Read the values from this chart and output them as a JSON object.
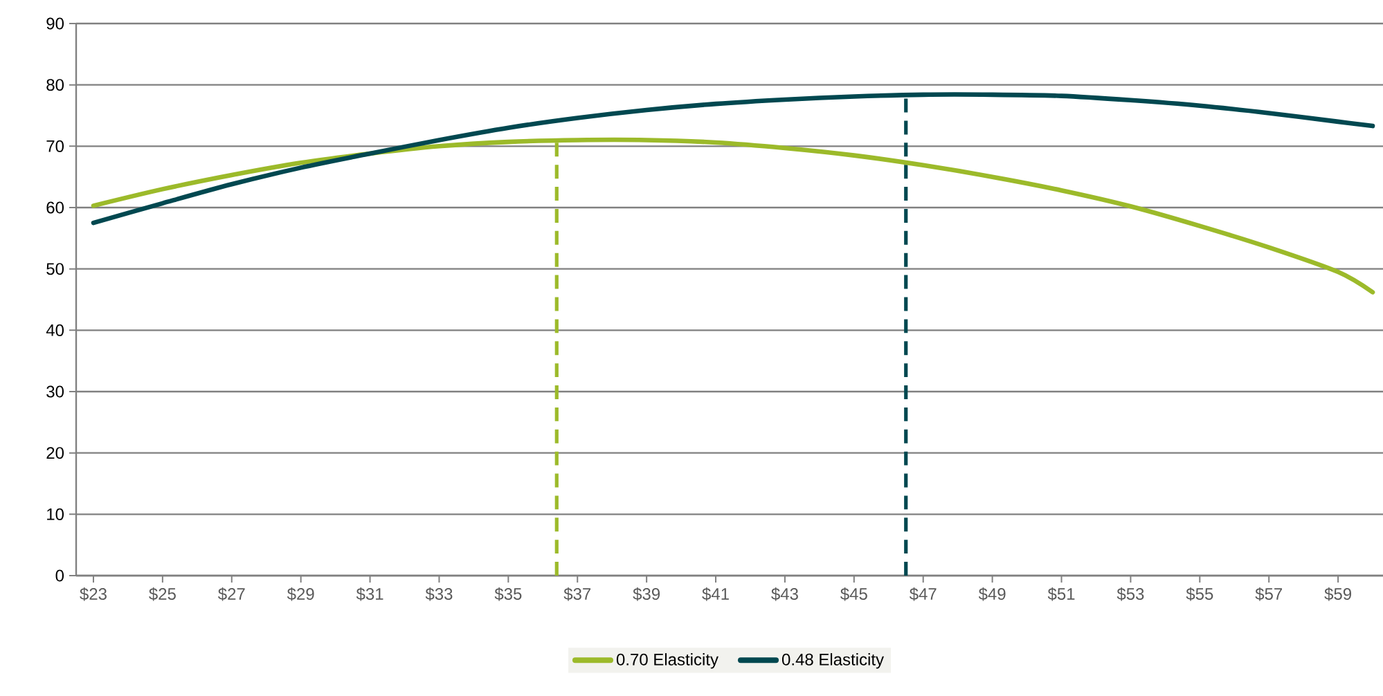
{
  "chart_data": {
    "type": "line",
    "x": [
      23,
      25,
      27,
      29,
      31,
      33,
      35,
      37,
      39,
      41,
      43,
      45,
      47,
      49,
      51,
      53,
      55,
      57,
      59,
      60
    ],
    "series": [
      {
        "name": "0.70 Elasticity",
        "color": "#9cba2a",
        "values": [
          60.3,
          63,
          65.3,
          67.3,
          68.8,
          70,
          70.7,
          71,
          71,
          70.6,
          69.7,
          68.5,
          66.9,
          65,
          62.8,
          60.2,
          57,
          53.5,
          49.5,
          46.2
        ]
      },
      {
        "name": "0.48 Elasticity",
        "color": "#004850",
        "values": [
          57.5,
          60.7,
          63.8,
          66.5,
          68.8,
          71,
          73,
          74.6,
          75.9,
          76.9,
          77.6,
          78.1,
          78.4,
          78.4,
          78.2,
          77.5,
          76.6,
          75.4,
          74,
          73.3
        ]
      }
    ],
    "xlim": [
      22.5,
      60.3
    ],
    "xticks": [
      {
        "value": 23,
        "label": "$23"
      },
      {
        "value": 25,
        "label": "$25"
      },
      {
        "value": 27,
        "label": "$27"
      },
      {
        "value": 29,
        "label": "$29"
      },
      {
        "value": 31,
        "label": "$31"
      },
      {
        "value": 33,
        "label": "$33"
      },
      {
        "value": 35,
        "label": "$35"
      },
      {
        "value": 37,
        "label": "$37"
      },
      {
        "value": 39,
        "label": "$39"
      },
      {
        "value": 41,
        "label": "$41"
      },
      {
        "value": 43,
        "label": "$43"
      },
      {
        "value": 45,
        "label": "$45"
      },
      {
        "value": 47,
        "label": "$47"
      },
      {
        "value": 49,
        "label": "$49"
      },
      {
        "value": 51,
        "label": "$51"
      },
      {
        "value": 53,
        "label": "$53"
      },
      {
        "value": 55,
        "label": "$55"
      },
      {
        "value": 57,
        "label": "$57"
      },
      {
        "value": 59,
        "label": "$59"
      }
    ],
    "ylim": [
      0,
      90
    ],
    "yticks": [
      0,
      10,
      20,
      30,
      40,
      50,
      60,
      70,
      80,
      90
    ],
    "ref_lines": [
      {
        "axis": "x",
        "value": 36.4,
        "color": "#9cba2a",
        "line_style": "dashed"
      },
      {
        "axis": "x",
        "value": 46.5,
        "color": "#004850",
        "line_style": "dashed"
      }
    ],
    "grid": "y",
    "legend": "bottom",
    "marker": "none",
    "line_style": "solid"
  }
}
